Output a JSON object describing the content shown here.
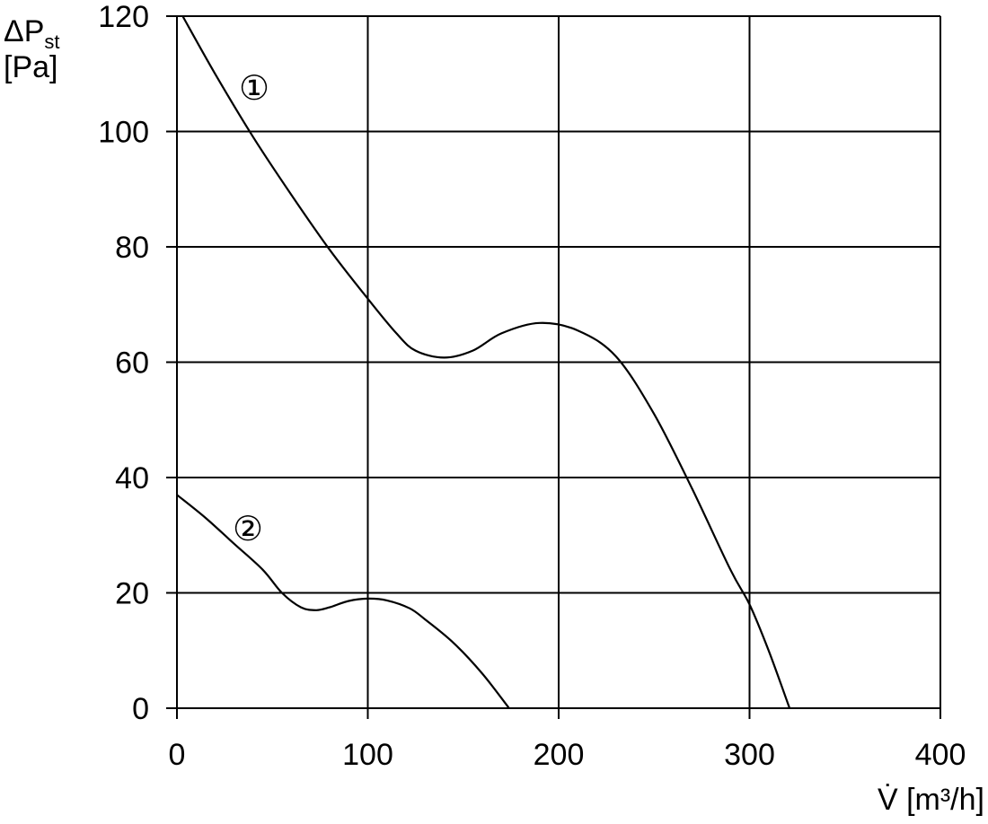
{
  "chart_data": {
    "type": "line",
    "title": "",
    "xlabel": "V̇ [m³/h]",
    "ylabel_main": "ΔP",
    "ylabel_sub": "st",
    "ylabel_unit": "[Pa]",
    "xlim": [
      0,
      400
    ],
    "ylim": [
      0,
      120
    ],
    "x_ticks": [
      0,
      100,
      200,
      300,
      400
    ],
    "y_ticks": [
      0,
      20,
      40,
      60,
      80,
      100,
      120
    ],
    "grid": true,
    "series": [
      {
        "name": "①",
        "points": [
          [
            3,
            120
          ],
          [
            20,
            110
          ],
          [
            40,
            99
          ],
          [
            60,
            89
          ],
          [
            80,
            79.5
          ],
          [
            100,
            71
          ],
          [
            115,
            65
          ],
          [
            125,
            62
          ],
          [
            140,
            60.8
          ],
          [
            155,
            62
          ],
          [
            170,
            65
          ],
          [
            190,
            66.8
          ],
          [
            210,
            65.5
          ],
          [
            230,
            61
          ],
          [
            250,
            51
          ],
          [
            270,
            38
          ],
          [
            290,
            24
          ],
          [
            300,
            18
          ],
          [
            310,
            10
          ],
          [
            321,
            0
          ]
        ]
      },
      {
        "name": "②",
        "points": [
          [
            0,
            37
          ],
          [
            15,
            33
          ],
          [
            30,
            28.5
          ],
          [
            45,
            24
          ],
          [
            55,
            20
          ],
          [
            65,
            17.5
          ],
          [
            73,
            17
          ],
          [
            80,
            17.5
          ],
          [
            90,
            18.6
          ],
          [
            100,
            19
          ],
          [
            110,
            18.7
          ],
          [
            122,
            17.3
          ],
          [
            130,
            15.4
          ],
          [
            145,
            11.3
          ],
          [
            160,
            6
          ],
          [
            174,
            0
          ]
        ]
      }
    ]
  }
}
